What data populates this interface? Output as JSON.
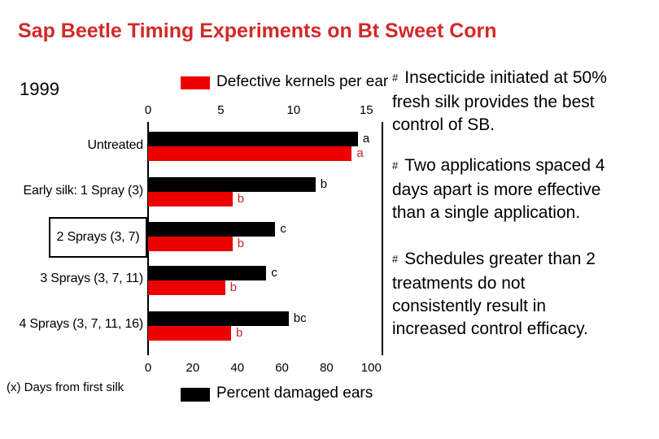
{
  "title": "Sap Beetle Timing Experiments on Bt Sweet Corn",
  "colors": {
    "title_red": "#d32929",
    "bar_red": "#ee0000",
    "bar_black": "#000000",
    "red_letter": "#cc2222",
    "background": "#ffffff"
  },
  "chart": {
    "year_label": "1999",
    "top_legend_label": "Defective kernels per ear",
    "bottom_legend_label": "Percent damaged ears",
    "footnote": "(x) Days from first silk"
  },
  "chart_data": {
    "type": "bar",
    "orientation": "horizontal",
    "title": "1999",
    "categories": [
      "Untreated",
      "Early silk: 1 Spray (3)",
      "2 Sprays (3, 7)",
      "3 Sprays (3, 7, 11)",
      "4 Sprays (3, 7, 11, 16)"
    ],
    "boxed_category_index": 2,
    "series": [
      {
        "name": "Percent damaged ears",
        "axis": "bottom",
        "color": "#000000",
        "letter_color": "#000000",
        "values": [
          94,
          75,
          57,
          53,
          63
        ],
        "letters": [
          "a",
          "b",
          "c",
          "c",
          "bc"
        ]
      },
      {
        "name": "Defective kernels per ear",
        "axis": "top",
        "color": "#ee0000",
        "letter_color": "#cc2222",
        "values": [
          14.0,
          5.8,
          5.8,
          5.3,
          5.7
        ],
        "letters": [
          "a",
          "b",
          "b",
          "b",
          "b"
        ]
      }
    ],
    "top_axis": {
      "label": "Defective kernels per ear",
      "ticks": [
        0,
        5,
        10,
        15
      ],
      "max_at_right_edge": 16.1
    },
    "bottom_axis": {
      "label": "Percent damaged ears",
      "ticks": [
        0,
        20,
        40,
        60,
        80,
        100
      ],
      "max_at_right_edge": 105
    },
    "grid": false,
    "legend_position": "top-and-bottom",
    "footnote": "(x) Days from first silk"
  },
  "bullets": [
    {
      "marker": "#",
      "lines": [
        "Insecticide initiated at 50%",
        "fresh silk provides the best",
        "control of SB."
      ]
    },
    {
      "marker": "#",
      "lines": [
        "Two applications spaced 4",
        "days apart is more effective",
        "than a single application."
      ]
    },
    {
      "marker": "#",
      "lines": [
        "Schedules greater than 2",
        "treatments do not",
        "consistently result in",
        "increased control efficacy."
      ]
    }
  ]
}
